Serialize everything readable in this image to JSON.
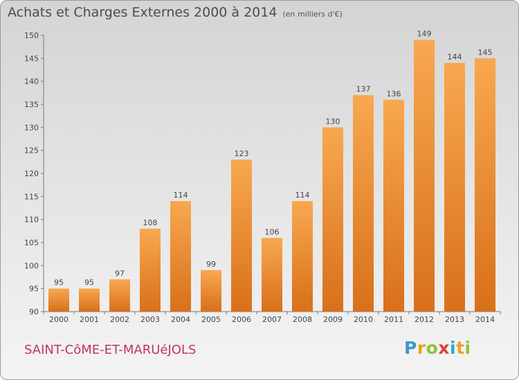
{
  "title": "Achats et Charges Externes 2000 à 2014",
  "unit": "(en milliers d'€)",
  "commune": "SAINT-CôME-ET-MARUéJOLS",
  "logo": {
    "p": "P",
    "r": "r",
    "o": "o",
    "x": "x",
    "i": "i",
    "t": "t",
    "i2": "i"
  },
  "colors": {
    "bar_light": "#f8a850",
    "bar_dark": "#d8701a",
    "commune_text": "#c0336a"
  },
  "chart_data": {
    "type": "bar",
    "title": "Achats et Charges Externes 2000 à 2014",
    "xlabel": "",
    "ylabel": "",
    "categories": [
      "2000",
      "2001",
      "2002",
      "2003",
      "2004",
      "2005",
      "2006",
      "2007",
      "2008",
      "2009",
      "2010",
      "2011",
      "2012",
      "2013",
      "2014"
    ],
    "values": [
      95,
      95,
      97,
      108,
      114,
      99,
      123,
      106,
      114,
      130,
      137,
      136,
      149,
      144,
      145
    ],
    "ylim": [
      90,
      150
    ],
    "yticks": [
      90,
      95,
      100,
      105,
      110,
      115,
      120,
      125,
      130,
      135,
      140,
      145,
      150
    ],
    "grid": false,
    "legend": "none"
  }
}
